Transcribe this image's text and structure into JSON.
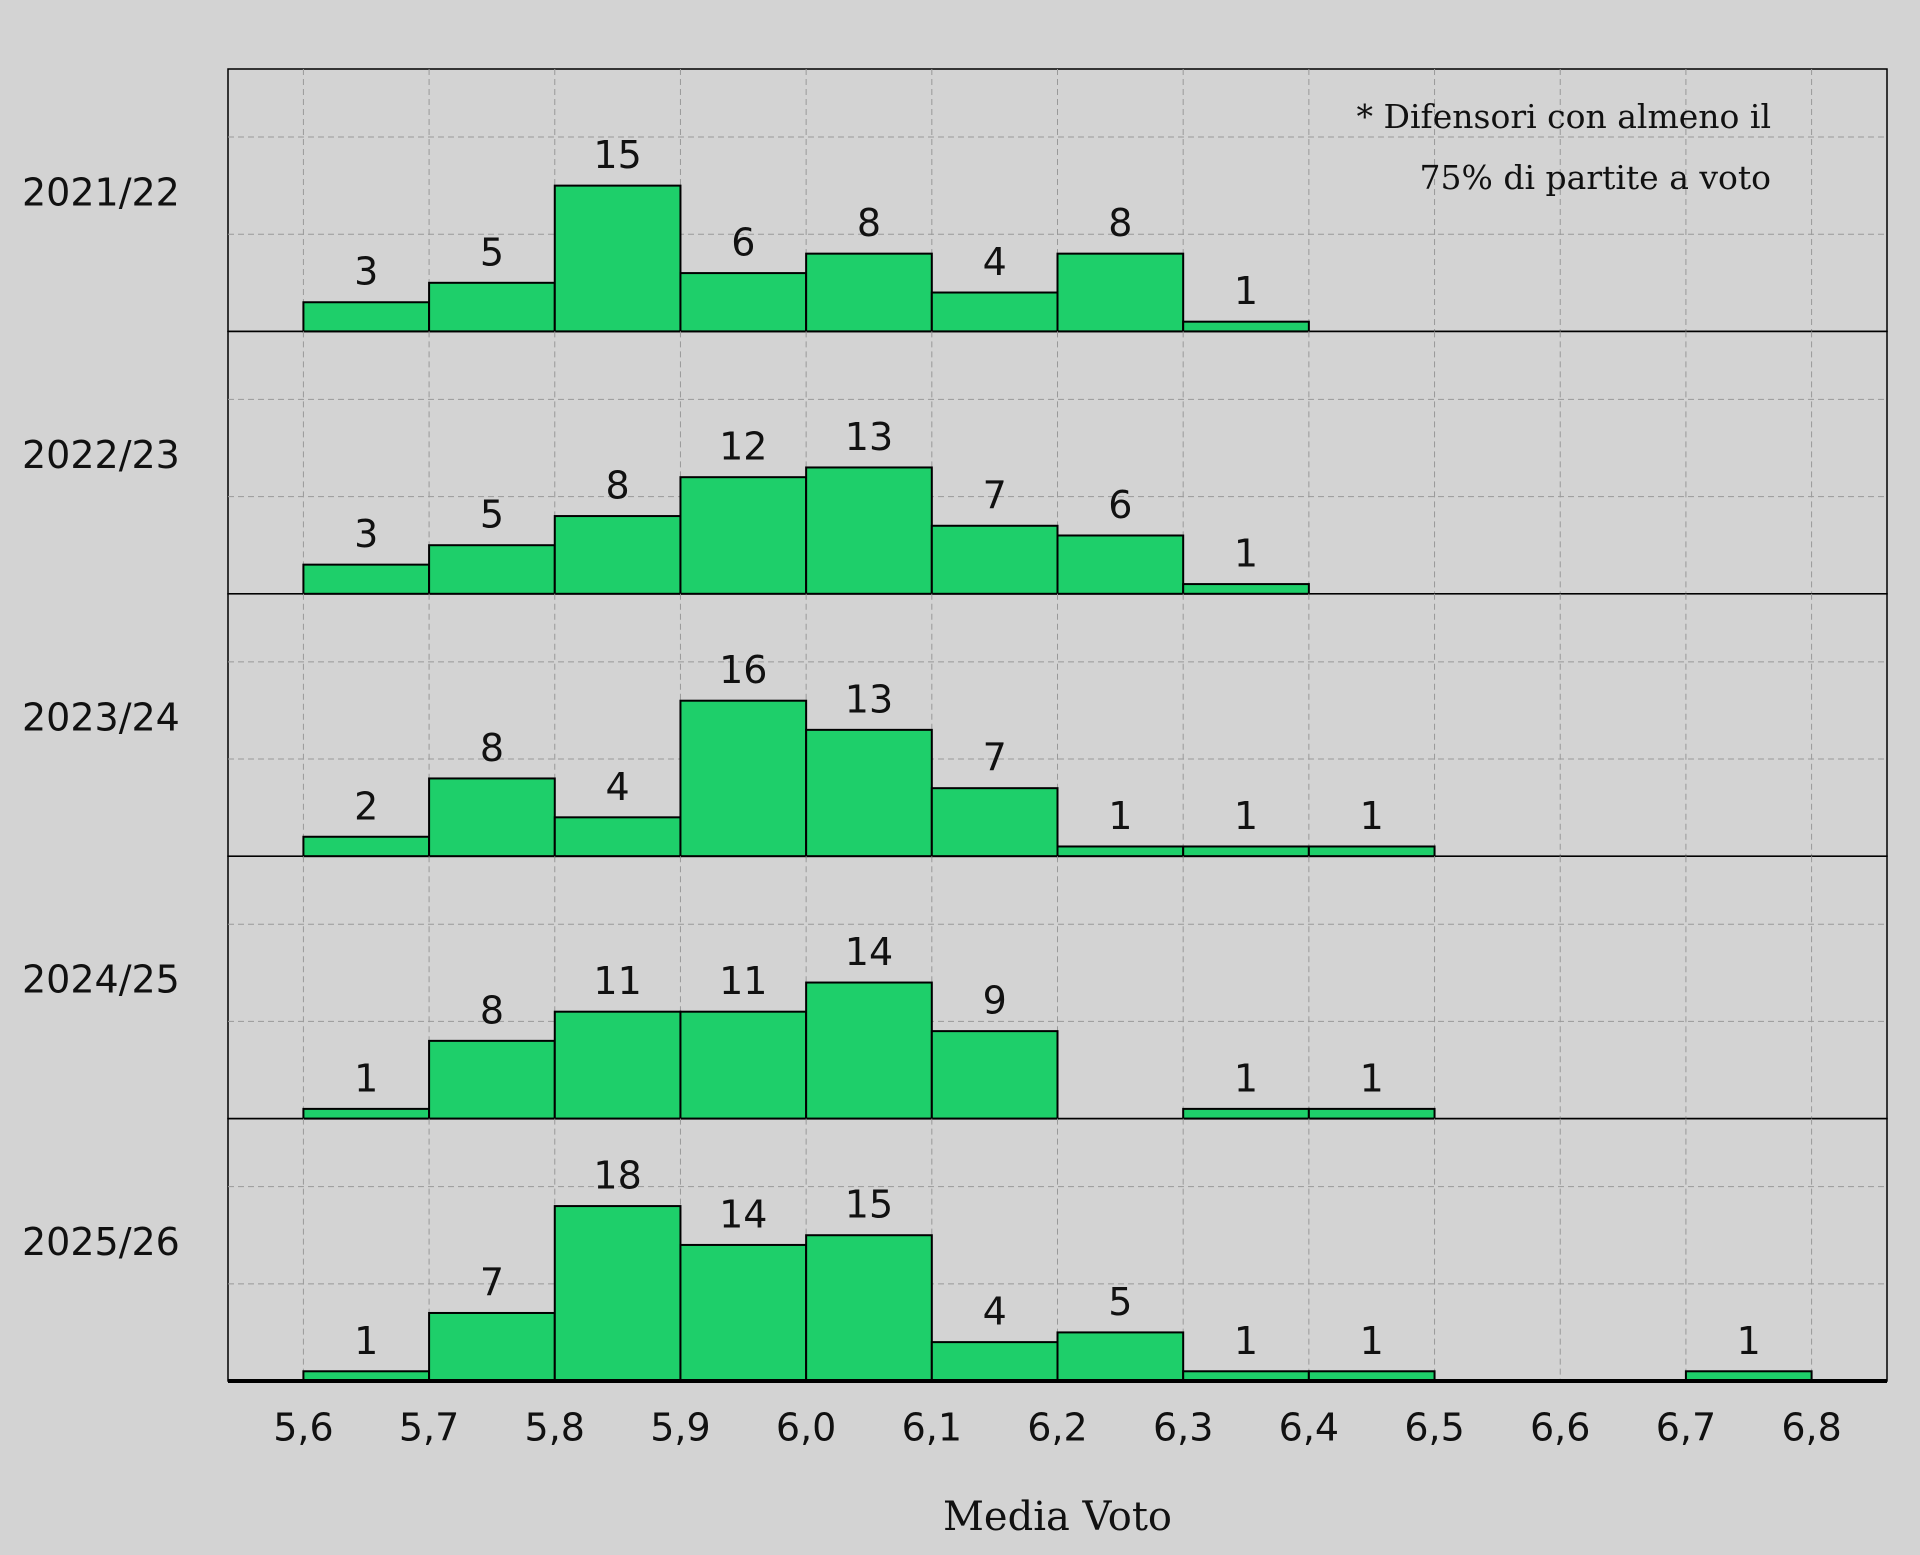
{
  "chart_data": {
    "type": "histogram",
    "x_label": "Media Voto",
    "annotation": [
      "* Difensori con almeno il",
      "75% di partite a voto"
    ],
    "bins": [
      5.6,
      5.7,
      5.8,
      5.9,
      6.0,
      6.1,
      6.2,
      6.3,
      6.4,
      6.5,
      6.6,
      6.7,
      6.8
    ],
    "series": [
      {
        "name": "2021/22",
        "color": "#1ecf6a",
        "values": [
          3,
          5,
          15,
          6,
          8,
          4,
          8,
          1,
          0,
          0,
          0,
          0
        ]
      },
      {
        "name": "2022/23",
        "color": "#1ecf6a",
        "values": [
          3,
          5,
          8,
          12,
          13,
          7,
          6,
          1,
          0,
          0,
          0,
          0
        ]
      },
      {
        "name": "2023/24",
        "color": "#1ecf6a",
        "values": [
          2,
          8,
          4,
          16,
          13,
          7,
          1,
          1,
          1,
          0,
          0,
          0
        ]
      },
      {
        "name": "2024/25",
        "color": "#1ecf6a",
        "values": [
          1,
          8,
          11,
          11,
          14,
          9,
          0,
          1,
          1,
          0,
          0,
          0
        ]
      },
      {
        "name": "2025/26",
        "color": "#1ecf6a",
        "values": [
          1,
          7,
          18,
          14,
          15,
          4,
          5,
          1,
          1,
          0,
          0,
          1
        ]
      }
    ],
    "xlim": [
      5.54,
      6.86
    ],
    "xticks": [
      {
        "value": 5.6,
        "label": "5,6"
      },
      {
        "value": 5.7,
        "label": "5,7"
      },
      {
        "value": 5.8,
        "label": "5,8"
      },
      {
        "value": 5.9,
        "label": "5,9"
      },
      {
        "value": 6.0,
        "label": "6,0"
      },
      {
        "value": 6.1,
        "label": "6,1"
      },
      {
        "value": 6.2,
        "label": "6,2"
      },
      {
        "value": 6.3,
        "label": "6,3"
      },
      {
        "value": 6.4,
        "label": "6,4"
      },
      {
        "value": 6.5,
        "label": "6,5"
      },
      {
        "value": 6.6,
        "label": "6,6"
      },
      {
        "value": 6.7,
        "label": "6,7"
      },
      {
        "value": 6.8,
        "label": "6,8"
      }
    ],
    "ylim": [
      0,
      27
    ],
    "yticks": [
      10,
      20
    ],
    "ytick_labels": false,
    "grid": true
  }
}
